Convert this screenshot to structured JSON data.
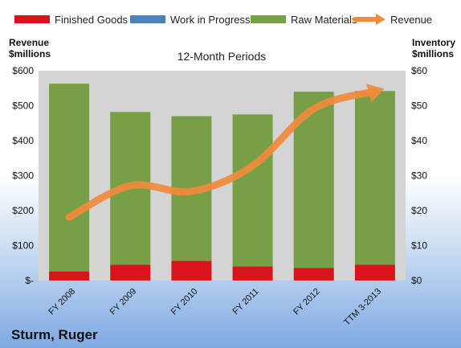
{
  "company": "Sturm, Ruger",
  "chart_data": {
    "type": "bar",
    "title": "12-Month Periods",
    "categories": [
      "FY 2008",
      "FY 2009",
      "FY 2010",
      "FY 2011",
      "FY 2012",
      "TTM 3-2013"
    ],
    "series": [
      {
        "name": "Finished Goods",
        "axis": "right",
        "color": "#d9141c",
        "values": [
          2.6,
          4.5,
          5.6,
          4.0,
          3.6,
          4.5
        ]
      },
      {
        "name": "Work in Progress",
        "axis": "right",
        "color": "#4f81bd",
        "values": [
          0,
          0,
          0,
          0,
          0,
          0
        ]
      },
      {
        "name": "Raw Materials",
        "axis": "right",
        "color": "#77a046",
        "values": [
          53.7,
          43.7,
          41.4,
          43.5,
          50.4,
          49.7
        ]
      },
      {
        "name": "Revenue",
        "axis": "left",
        "type": "line",
        "color": "#f08a3c",
        "values": [
          181,
          271,
          255,
          328,
          491,
          541
        ]
      }
    ],
    "left_axis": {
      "label_line1": "Revenue",
      "label_line2": "$millions",
      "ylim": [
        0,
        600
      ],
      "ticks": [
        "$-",
        "$100",
        "$200",
        "$300",
        "$400",
        "$500",
        "$600"
      ]
    },
    "right_axis": {
      "label_line1": "Inventory",
      "label_line2": "$millions",
      "ylim": [
        0,
        60
      ],
      "ticks": [
        "$0",
        "$10",
        "$20",
        "$30",
        "$40",
        "$50",
        "$60"
      ]
    },
    "legend_position": "top",
    "grid": false
  }
}
